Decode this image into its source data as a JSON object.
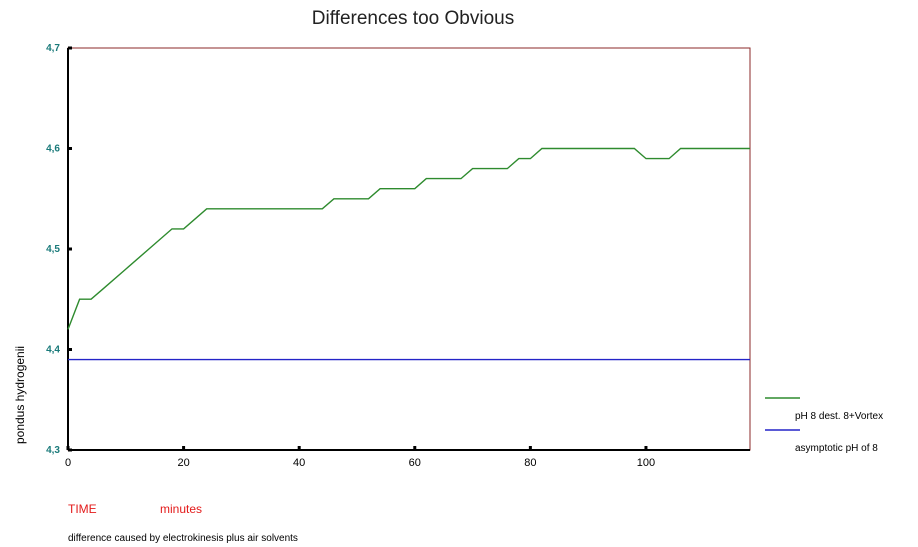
{
  "chart_data": {
    "type": "line",
    "title": "Differences too Obvious",
    "xlabel": "TIME",
    "xunit": "minutes",
    "ylabel": "pondus hydrogenii",
    "note": "difference caused by electrokinesis plus air solvents",
    "xlim": [
      0,
      118
    ],
    "ylim": [
      4.3,
      4.7
    ],
    "x_ticks": [
      0,
      20,
      40,
      60,
      80,
      100
    ],
    "y_ticks": [
      4.3,
      4.4,
      4.5,
      4.6,
      4.7
    ],
    "y_tick_labels": [
      "4,3",
      "4,4",
      "4,5",
      "4,6",
      "4,7"
    ],
    "grid": false,
    "legend_position": "right",
    "series": [
      {
        "name": "pH 8 dest. 8+Vortex",
        "color": "#2e8b2e",
        "points": [
          [
            0,
            4.42
          ],
          [
            2,
            4.45
          ],
          [
            4,
            4.45
          ],
          [
            6,
            4.46
          ],
          [
            10,
            4.48
          ],
          [
            14,
            4.5
          ],
          [
            18,
            4.52
          ],
          [
            20,
            4.52
          ],
          [
            24,
            4.54
          ],
          [
            44,
            4.54
          ],
          [
            46,
            4.55
          ],
          [
            52,
            4.55
          ],
          [
            54,
            4.56
          ],
          [
            60,
            4.56
          ],
          [
            62,
            4.57
          ],
          [
            68,
            4.57
          ],
          [
            70,
            4.58
          ],
          [
            76,
            4.58
          ],
          [
            78,
            4.59
          ],
          [
            80,
            4.59
          ],
          [
            82,
            4.6
          ],
          [
            98,
            4.6
          ],
          [
            100,
            4.59
          ],
          [
            104,
            4.59
          ],
          [
            106,
            4.6
          ],
          [
            118,
            4.6
          ]
        ]
      },
      {
        "name": "asymptotic pH of 8",
        "color": "#2424c8",
        "points": [
          [
            0,
            4.39
          ],
          [
            118,
            4.39
          ]
        ]
      }
    ]
  },
  "colors": {
    "frame": "#8b2a2a",
    "annotation_red": "#e31a1a",
    "tick_label": "#1a7a7a"
  }
}
